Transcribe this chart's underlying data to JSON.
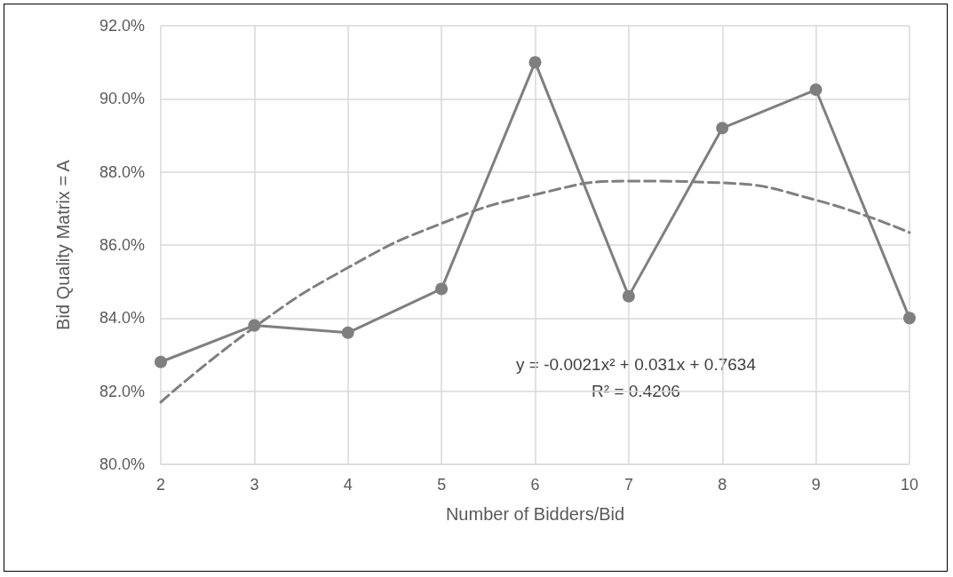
{
  "chart_data": {
    "type": "line",
    "xlabel": "Number of Bidders/Bid",
    "ylabel": "Bid Quality Matrix = A",
    "x": [
      2,
      3,
      4,
      5,
      6,
      7,
      8,
      9,
      10
    ],
    "series": [
      {
        "color": "#7f7f7f",
        "values": [
          82.8,
          83.8,
          83.6,
          84.8,
          91.0,
          84.6,
          89.2,
          90.25,
          84.0
        ],
        "marker": "circle",
        "line_style": "solid"
      },
      {
        "type": "line",
        "color": "#7f7f7f",
        "x": [
          2,
          3,
          4,
          5,
          6,
          7,
          8,
          9,
          10
        ],
        "values": [
          81.7,
          83.75,
          85.38,
          86.59,
          87.38,
          87.75,
          87.7,
          87.23,
          86.34
        ],
        "marker": "none",
        "line_style": "dashed"
      }
    ],
    "xlim": [
      2,
      10
    ],
    "xticks": [
      2,
      3,
      4,
      5,
      6,
      7,
      8,
      9,
      10
    ],
    "ylim": [
      80,
      92
    ],
    "yticks": [
      {
        "value": 80,
        "label": "80.0%"
      },
      {
        "value": 82,
        "label": "82.0%"
      },
      {
        "value": 84,
        "label": "84.0%"
      },
      {
        "value": 86,
        "label": "86.0%"
      },
      {
        "value": 88,
        "label": "88.0%"
      },
      {
        "value": 90,
        "label": "90.0%"
      },
      {
        "value": 92,
        "label": "92.0%"
      }
    ],
    "grid": true,
    "annotations": [
      "y = -0.0021x² + 0.031x + 0.7634",
      "R² = 0.4206"
    ]
  }
}
